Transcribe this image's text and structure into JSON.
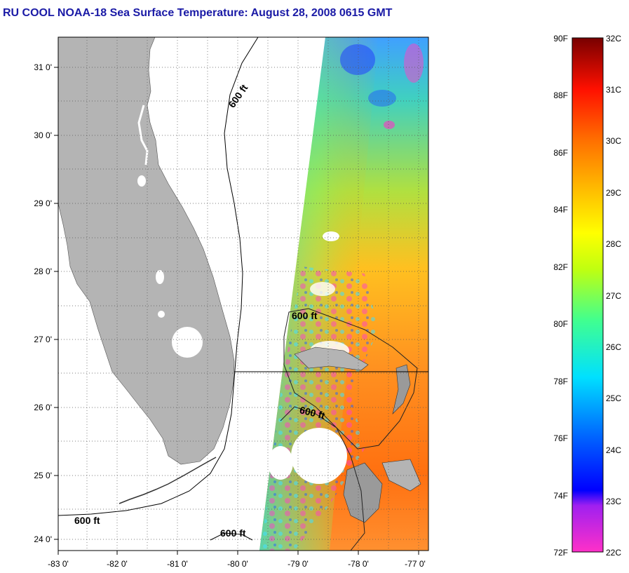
{
  "title": "RU COOL  NOAA-18  Sea Surface Temperature:  August 28, 2008 0615 GMT",
  "map": {
    "lon_ticks": [
      "-83 0'",
      "-82 0'",
      "-81 0'",
      "-80 0'",
      "-79 0'",
      "-78 0'",
      "-77 0'"
    ],
    "lat_ticks": [
      "31 0'",
      "30 0'",
      "29 0'",
      "28 0'",
      "27 0'",
      "26 0'",
      "25 0'",
      "24 0'"
    ],
    "contour_labels": [
      "600 ft",
      "600 ft",
      "600 ft",
      "600 ft",
      "600 ft"
    ],
    "land_color": "#b4b4b4",
    "grid": "dotted"
  },
  "legend": {
    "fahrenheit_labels": [
      "90F",
      "88F",
      "86F",
      "84F",
      "82F",
      "80F",
      "78F",
      "76F",
      "74F",
      "72F"
    ],
    "celsius_labels": [
      "32C",
      "31C",
      "30C",
      "29C",
      "28C",
      "27C",
      "26C",
      "25C",
      "24C",
      "23C",
      "22C"
    ],
    "colors": [
      "#ff30c8",
      "#a020f0",
      "#0000ff",
      "#00a0ff",
      "#00ffff",
      "#40ff80",
      "#d0ff00",
      "#ffe000",
      "#ff9000",
      "#ff2000",
      "#c00000",
      "#780000"
    ]
  }
}
